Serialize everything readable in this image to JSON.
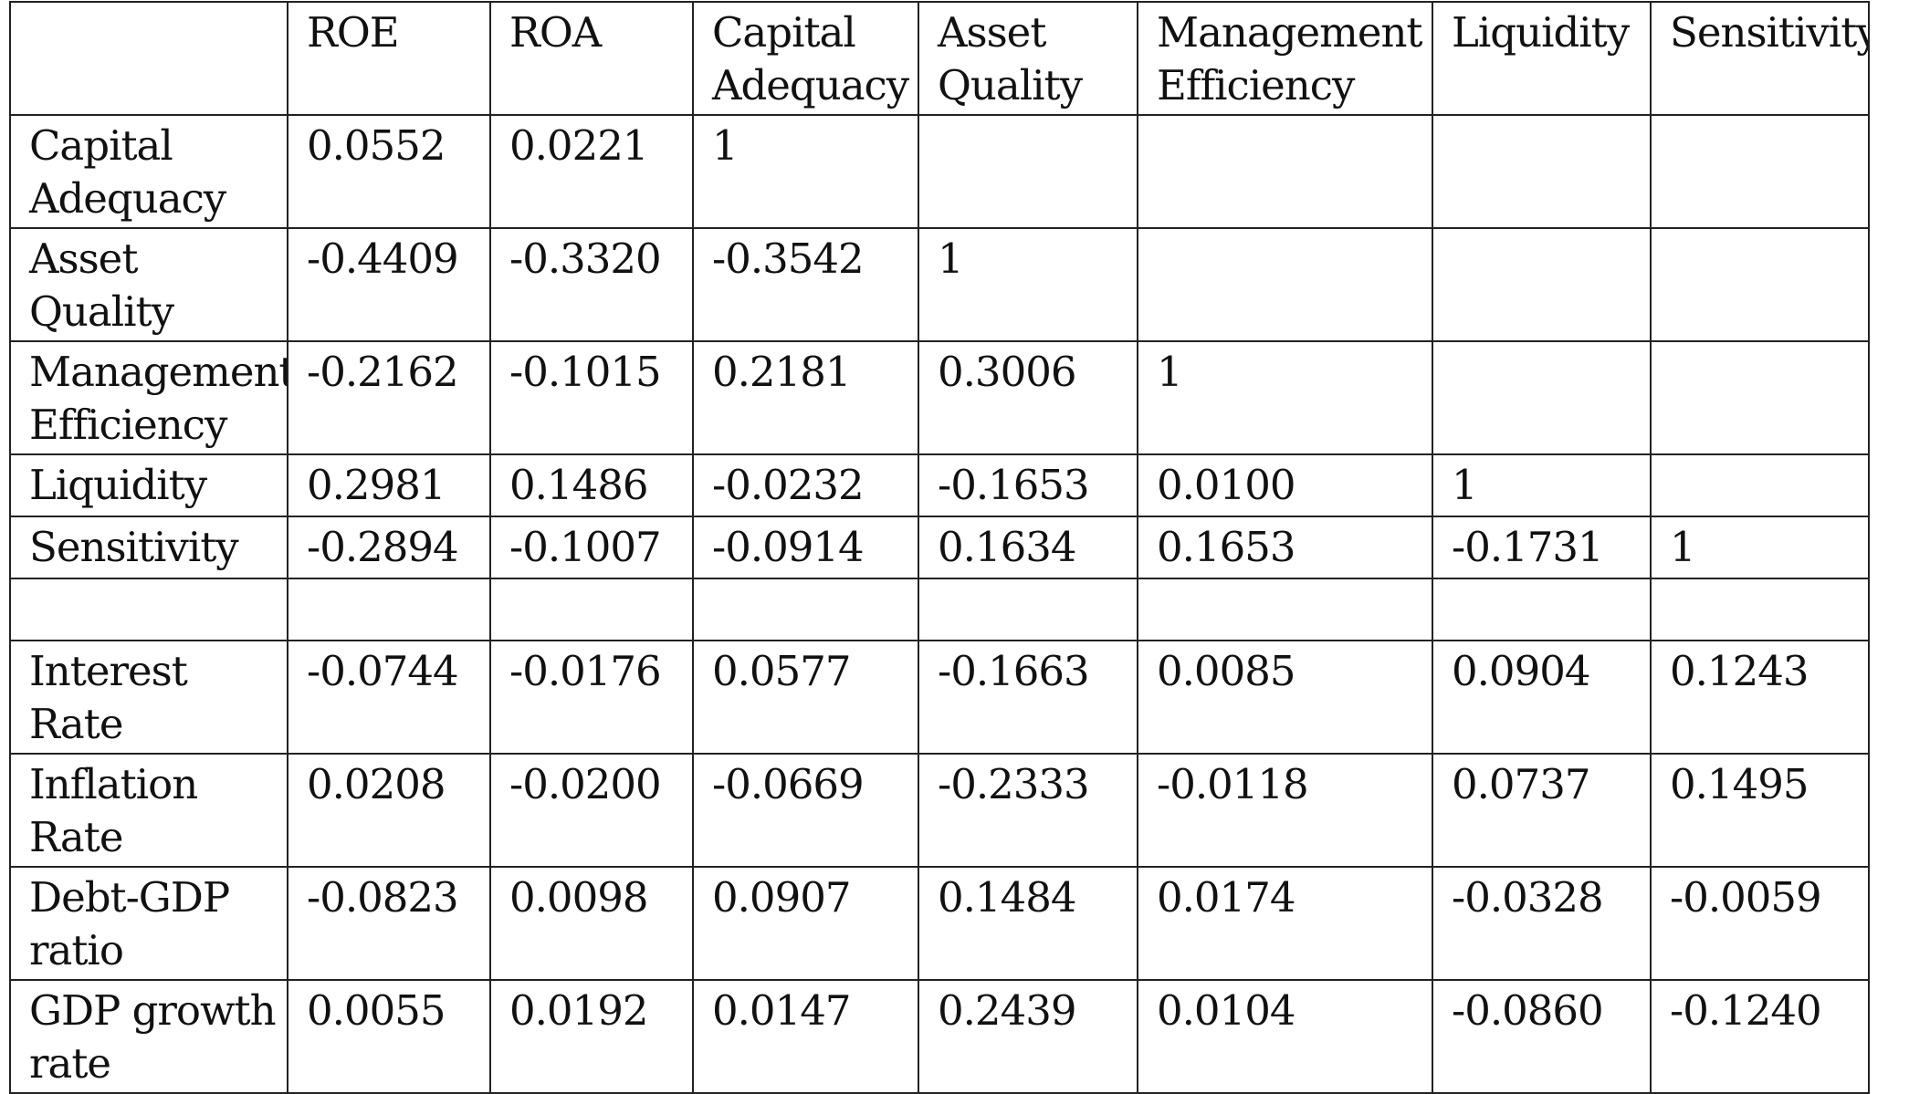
{
  "table": {
    "header": [
      "",
      "ROE",
      "ROA",
      "Capital Adequacy",
      "Asset Quality",
      "Management Efficiency",
      "Liquidity",
      "Sensitivity"
    ],
    "rows": [
      [
        "Capital Adequacy",
        "0.0552",
        "0.0221",
        "1",
        "",
        "",
        "",
        ""
      ],
      [
        "Asset Quality",
        "-0.4409",
        "-0.3320",
        "-0.3542",
        "1",
        "",
        "",
        ""
      ],
      [
        "Management Efficiency",
        "-0.2162",
        "-0.1015",
        "0.2181",
        "0.3006",
        "1",
        "",
        ""
      ],
      [
        "Liquidity",
        "0.2981",
        "0.1486",
        "-0.0232",
        "-0.1653",
        "0.0100",
        "1",
        ""
      ],
      [
        "Sensitivity",
        "-0.2894",
        "-0.1007",
        "-0.0914",
        "0.1634",
        "0.1653",
        "-0.1731",
        "1"
      ],
      [
        "",
        "",
        "",
        "",
        "",
        "",
        "",
        ""
      ],
      [
        "Interest Rate",
        "-0.0744",
        "-0.0176",
        "0.0577",
        "-0.1663",
        "0.0085",
        "0.0904",
        "0.1243"
      ],
      [
        "Inflation Rate",
        "0.0208",
        "-0.0200",
        "-0.0669",
        "-0.2333",
        "-0.0118",
        "0.0737",
        "0.1495"
      ],
      [
        "Debt-GDP ratio",
        "-0.0823",
        "0.0098",
        "0.0907",
        "0.1484",
        "0.0174",
        "-0.0328",
        "-0.0059"
      ],
      [
        "GDP growth rate",
        "0.0055",
        "0.0192",
        "0.0147",
        "0.2439",
        "0.0104",
        "-0.0860",
        "-0.1240"
      ]
    ]
  }
}
